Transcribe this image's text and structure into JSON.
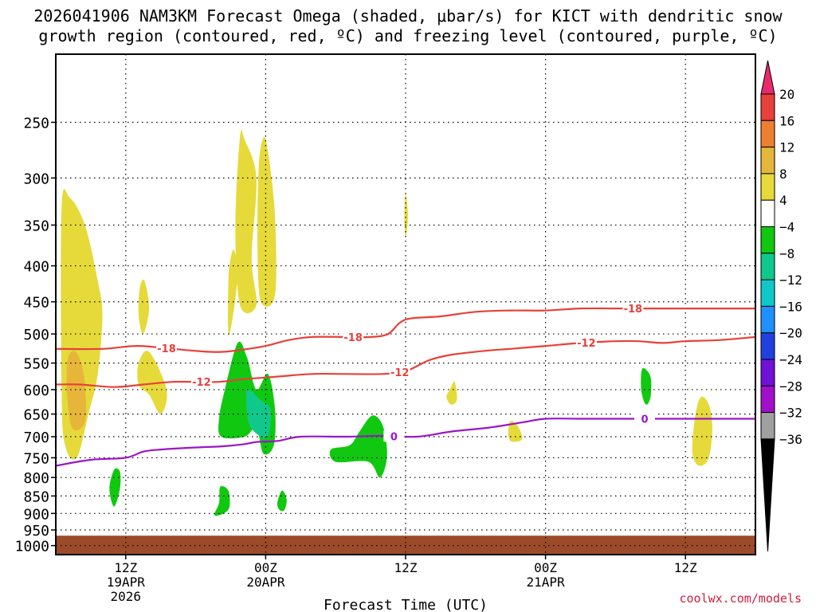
{
  "title_lines": [
    "2026041906 NAM3KM Forecast Omega (shaded, μbar/s) for KICT with dendritic snow",
    "growth region (contoured, red, ºC) and freezing level (contoured, purple, ºC)"
  ],
  "footer": "coolwx.com/models",
  "chart_data": {
    "type": "contour",
    "title": "2026041906 NAM3KM Forecast Omega (shaded, μbar/s) for KICT with dendritic snow growth region (contoured, red, ºC) and freezing level (contoured, purple, ºC)",
    "xlabel": "Forecast Time (UTC)",
    "ylabel": "",
    "x_range_hours": [
      6,
      66
    ],
    "y_log_pressure": true,
    "ylim_hpa": [
      1030,
      200
    ],
    "grid": true,
    "y_ticks": [
      250,
      300,
      350,
      400,
      450,
      500,
      550,
      600,
      650,
      700,
      750,
      800,
      850,
      900,
      950,
      1000
    ],
    "x_ticks": [
      {
        "hour": 12,
        "lines": [
          "12Z",
          "19APR",
          "2026"
        ]
      },
      {
        "hour": 24,
        "lines": [
          "00Z",
          "20APR"
        ]
      },
      {
        "hour": 36,
        "lines": [
          "12Z"
        ]
      },
      {
        "hour": 48,
        "lines": [
          "00Z",
          "21APR"
        ]
      },
      {
        "hour": 60,
        "lines": [
          "12Z"
        ]
      }
    ],
    "colorbar": {
      "labels": [
        "20",
        "16",
        "12",
        "8",
        "4",
        "−4",
        "−8",
        "−12",
        "−16",
        "−20",
        "−24",
        "−28",
        "−32",
        "−36"
      ],
      "colors": [
        "#e8296e",
        "#e8403a",
        "#ec8030",
        "#e6b63a",
        "#e6da3a",
        "#ffffff",
        "#10c810",
        "#10c88c",
        "#10c8c8",
        "#1e90ff",
        "#2040e0",
        "#7010d8",
        "#a010c8",
        "#a0a0a0",
        "#000000"
      ]
    },
    "omega_regions": [
      {
        "value": "4",
        "color": "#e6da3a",
        "points": [
          [
            6.5,
            330
          ],
          [
            7.2,
            320
          ],
          [
            8.5,
            350
          ],
          [
            9.6,
            420
          ],
          [
            10.0,
            470
          ],
          [
            9.6,
            570
          ],
          [
            8.8,
            650
          ],
          [
            7.8,
            750
          ],
          [
            6.8,
            720
          ],
          [
            6.5,
            600
          ]
        ]
      },
      {
        "value": "8",
        "color": "#e6b63a",
        "points": [
          [
            7.0,
            545
          ],
          [
            7.7,
            530
          ],
          [
            8.4,
            570
          ],
          [
            8.6,
            650
          ],
          [
            8.2,
            680
          ],
          [
            7.4,
            680
          ],
          [
            7.0,
            620
          ]
        ]
      },
      {
        "value": "4",
        "color": "#e6da3a",
        "points": [
          [
            13.2,
            430
          ],
          [
            13.6,
            420
          ],
          [
            14.0,
            460
          ],
          [
            13.5,
            500
          ],
          [
            13.1,
            470
          ]
        ]
      },
      {
        "value": "4",
        "color": "#e6da3a",
        "points": [
          [
            13.1,
            550
          ],
          [
            14.0,
            530
          ],
          [
            15.5,
            600
          ],
          [
            15.0,
            650
          ],
          [
            14.0,
            610
          ],
          [
            13.1,
            590
          ]
        ]
      },
      {
        "value": "4",
        "color": "#e6da3a",
        "points": [
          [
            21.0,
            390
          ],
          [
            21.3,
            380
          ],
          [
            21.6,
            410
          ],
          [
            21.2,
            470
          ],
          [
            20.8,
            500
          ],
          [
            20.8,
            420
          ]
        ]
      },
      {
        "value": "4",
        "color": "#e6da3a",
        "points": [
          [
            21.8,
            262
          ],
          [
            22.2,
            265
          ],
          [
            23.2,
            300
          ],
          [
            22.8,
            390
          ],
          [
            23.2,
            455
          ],
          [
            21.8,
            455
          ],
          [
            21.4,
            350
          ]
        ]
      },
      {
        "value": "4",
        "color": "#e6da3a",
        "points": [
          [
            23.8,
            263
          ],
          [
            24.2,
            275
          ],
          [
            24.8,
            340
          ],
          [
            24.8,
            440
          ],
          [
            23.6,
            450
          ],
          [
            23.3,
            380
          ],
          [
            23.4,
            290
          ]
        ]
      },
      {
        "value": "4",
        "color": "#e6da3a",
        "points": [
          [
            36.0,
            315
          ],
          [
            36.2,
            340
          ],
          [
            36.0,
            365
          ],
          [
            35.9,
            340
          ]
        ]
      },
      {
        "value": "4",
        "color": "#e6da3a",
        "points": [
          [
            39.8,
            600
          ],
          [
            40.2,
            585
          ],
          [
            40.4,
            620
          ],
          [
            39.9,
            630
          ],
          [
            39.5,
            615
          ]
        ]
      },
      {
        "value": "4",
        "color": "#e6da3a",
        "points": [
          [
            45.0,
            665
          ],
          [
            45.6,
            675
          ],
          [
            46.0,
            700
          ],
          [
            45.8,
            710
          ],
          [
            45.0,
            710
          ],
          [
            44.8,
            690
          ]
        ]
      },
      {
        "value": "4",
        "color": "#e6da3a",
        "points": [
          [
            61.3,
            615
          ],
          [
            62.0,
            630
          ],
          [
            62.3,
            680
          ],
          [
            62.0,
            750
          ],
          [
            61.2,
            770
          ],
          [
            60.6,
            740
          ],
          [
            60.8,
            660
          ]
        ]
      },
      {
        "value": "-4",
        "color": "#10c810",
        "points": [
          [
            21.6,
            515
          ],
          [
            22.4,
            540
          ],
          [
            23.2,
            600
          ],
          [
            24.2,
            570
          ],
          [
            24.8,
            640
          ],
          [
            24.7,
            720
          ],
          [
            23.8,
            740
          ],
          [
            23.2,
            680
          ],
          [
            22.2,
            700
          ],
          [
            20.2,
            700
          ],
          [
            20.0,
            660
          ],
          [
            20.5,
            600
          ]
        ]
      },
      {
        "value": "-8",
        "color": "#10c88c",
        "points": [
          [
            22.4,
            600
          ],
          [
            23.5,
            620
          ],
          [
            24.4,
            640
          ],
          [
            24.2,
            700
          ],
          [
            23.3,
            695
          ],
          [
            22.5,
            665
          ]
        ]
      },
      {
        "value": "-4",
        "color": "#10c810",
        "points": [
          [
            32.0,
            690
          ],
          [
            33.0,
            655
          ],
          [
            33.7,
            660
          ],
          [
            34.2,
            690
          ],
          [
            34.4,
            750
          ],
          [
            33.8,
            800
          ],
          [
            32.8,
            760
          ],
          [
            30.0,
            760
          ],
          [
            29.6,
            730
          ],
          [
            31.2,
            720
          ]
        ]
      },
      {
        "value": "-4",
        "color": "#10c810",
        "points": [
          [
            56.3,
            560
          ],
          [
            57.0,
            575
          ],
          [
            57.0,
            615
          ],
          [
            56.6,
            630
          ],
          [
            56.2,
            600
          ]
        ]
      },
      {
        "value": "-4",
        "color": "#10c810",
        "points": [
          [
            11.0,
            780
          ],
          [
            11.5,
            785
          ],
          [
            11.5,
            830
          ],
          [
            11.0,
            880
          ],
          [
            10.6,
            830
          ]
        ]
      },
      {
        "value": "-4",
        "color": "#10c810",
        "points": [
          [
            20.1,
            825
          ],
          [
            20.8,
            835
          ],
          [
            20.9,
            880
          ],
          [
            20.4,
            900
          ],
          [
            19.6,
            905
          ],
          [
            20.0,
            870
          ]
        ]
      },
      {
        "value": "-4",
        "color": "#10c810",
        "points": [
          [
            25.4,
            835
          ],
          [
            25.8,
            860
          ],
          [
            25.6,
            890
          ],
          [
            25.2,
            890
          ],
          [
            25.0,
            870
          ]
        ]
      }
    ],
    "ground": {
      "color": "#9c4b2a",
      "top_hpa": 968
    },
    "contours": [
      {
        "name": "-18",
        "color": "#e8403a",
        "labels": [
          {
            "hour": 15.5,
            "text": "-18"
          },
          {
            "hour": 31.5,
            "text": "-18"
          },
          {
            "hour": 55.5,
            "text": "-18"
          }
        ],
        "points": [
          [
            6,
            525
          ],
          [
            10,
            525
          ],
          [
            13,
            520
          ],
          [
            16,
            525
          ],
          [
            19,
            530
          ],
          [
            20.5,
            530
          ],
          [
            22.5,
            525
          ],
          [
            24,
            520
          ],
          [
            26,
            510
          ],
          [
            28,
            505
          ],
          [
            31,
            505
          ],
          [
            33,
            505
          ],
          [
            34.5,
            500
          ],
          [
            35.5,
            482
          ],
          [
            36.5,
            475
          ],
          [
            39,
            472
          ],
          [
            42,
            465
          ],
          [
            45,
            463
          ],
          [
            48,
            463
          ],
          [
            51,
            460
          ],
          [
            54,
            460
          ],
          [
            57,
            460
          ],
          [
            60,
            460
          ],
          [
            63,
            460
          ],
          [
            66,
            460
          ]
        ]
      },
      {
        "name": "-12",
        "color": "#e8403a",
        "labels": [
          {
            "hour": 18.5,
            "text": "-12"
          },
          {
            "hour": 35.5,
            "text": "-12"
          },
          {
            "hour": 51.5,
            "text": "-12"
          }
        ],
        "points": [
          [
            6,
            590
          ],
          [
            8,
            590
          ],
          [
            11,
            595
          ],
          [
            13.5,
            590
          ],
          [
            16,
            585
          ],
          [
            18,
            585
          ],
          [
            20,
            585
          ],
          [
            22,
            580
          ],
          [
            25,
            575
          ],
          [
            28,
            570
          ],
          [
            31,
            570
          ],
          [
            34,
            570
          ],
          [
            36,
            565
          ],
          [
            38,
            545
          ],
          [
            40,
            535
          ],
          [
            43,
            528
          ],
          [
            45,
            525
          ],
          [
            48,
            520
          ],
          [
            51,
            515
          ],
          [
            54,
            512
          ],
          [
            56,
            512
          ],
          [
            58,
            515
          ],
          [
            60,
            512
          ],
          [
            63,
            510
          ],
          [
            66,
            505
          ]
        ]
      },
      {
        "name": "0",
        "color": "#9a16c8",
        "labels": [
          {
            "hour": 35,
            "text": "0"
          },
          {
            "hour": 56.5,
            "text": "0"
          }
        ],
        "points": [
          [
            6,
            770
          ],
          [
            9,
            755
          ],
          [
            12,
            750
          ],
          [
            13.5,
            735
          ],
          [
            15,
            730
          ],
          [
            18,
            725
          ],
          [
            20,
            723
          ],
          [
            22,
            718
          ],
          [
            23.3,
            712
          ],
          [
            25,
            710
          ],
          [
            27,
            700
          ],
          [
            31,
            700
          ],
          [
            34,
            698
          ],
          [
            37,
            700
          ],
          [
            40,
            688
          ],
          [
            43,
            680
          ],
          [
            46,
            668
          ],
          [
            48,
            660
          ],
          [
            51,
            660
          ],
          [
            54,
            660
          ],
          [
            57,
            660
          ],
          [
            60,
            660
          ],
          [
            63,
            660
          ],
          [
            66,
            660
          ]
        ]
      }
    ]
  }
}
